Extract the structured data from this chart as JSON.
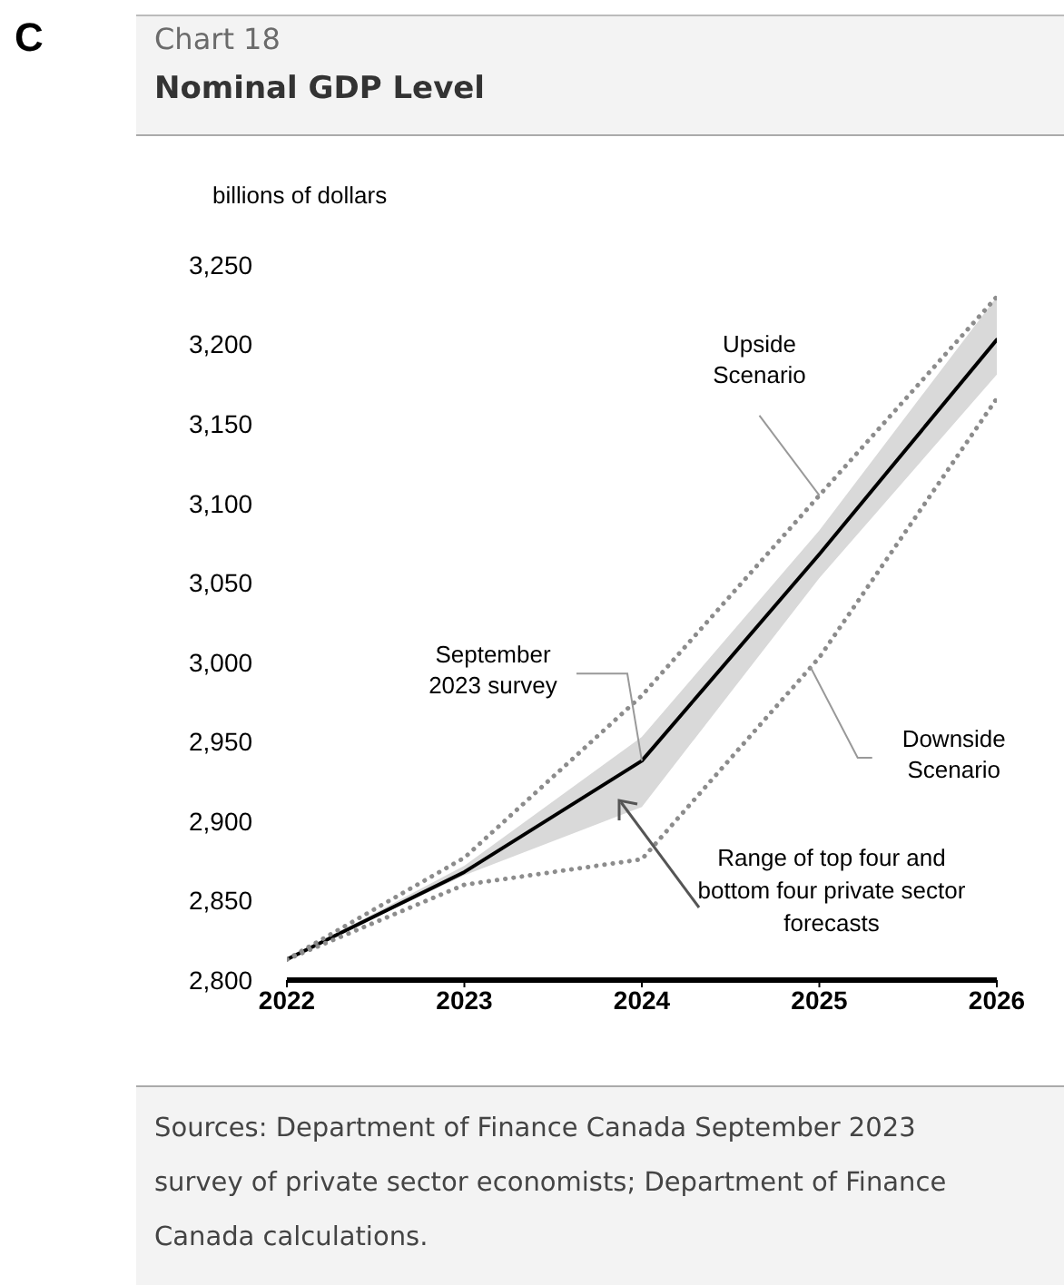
{
  "chart_data": {
    "type": "line",
    "title": "Nominal GDP Level",
    "subtitle": "Chart 18",
    "ylabel": "billions of dollars",
    "x": [
      2022,
      2023,
      2024,
      2025,
      2026
    ],
    "xlim": [
      2022,
      2026
    ],
    "xticks": [
      2022,
      2023,
      2024,
      2025,
      2026
    ],
    "ylim": [
      2800,
      3250
    ],
    "yticks": [
      {
        "value": 2800,
        "label": "2,800"
      },
      {
        "value": 2850,
        "label": "2,850"
      },
      {
        "value": 2900,
        "label": "2,900"
      },
      {
        "value": 2950,
        "label": "2,950"
      },
      {
        "value": 3000,
        "label": "3,000"
      },
      {
        "value": 3050,
        "label": "3,050"
      },
      {
        "value": 3100,
        "label": "3,100"
      },
      {
        "value": 3150,
        "label": "3,150"
      },
      {
        "value": 3200,
        "label": "3,200"
      },
      {
        "value": 3250,
        "label": "3,250"
      }
    ],
    "series": [
      {
        "color": "#000000",
        "values": [
          2813,
          2868,
          2938,
          3068,
          3203
        ],
        "lower": [
          2813,
          2866,
          2909,
          3053,
          3181
        ],
        "upper": [
          2813,
          2872,
          2953,
          3083,
          3230
        ],
        "line_style": "solid"
      },
      {
        "color": "#8c8c8c",
        "values": [
          2813,
          2877,
          2979,
          3105,
          3230
        ],
        "line_style": "dotted"
      },
      {
        "color": "#8c8c8c",
        "values": [
          2813,
          2860,
          2876,
          3003,
          3166
        ],
        "line_style": "dotted"
      }
    ],
    "annotations": [
      "C",
      {
        "text": "Upside Scenario",
        "x": 2025,
        "y": 3105
      },
      {
        "text": "September 2023 survey",
        "x": 2024,
        "y": 2938
      },
      {
        "text": "Downside Scenario",
        "x": 2024.95,
        "y": 2997
      },
      "Range of top four and bottom four private sector forecasts",
      "Sources: Department of Finance Canada September 2023 survey of private sector economists; Department of Finance Canada calculations."
    ],
    "marker": "none"
  }
}
